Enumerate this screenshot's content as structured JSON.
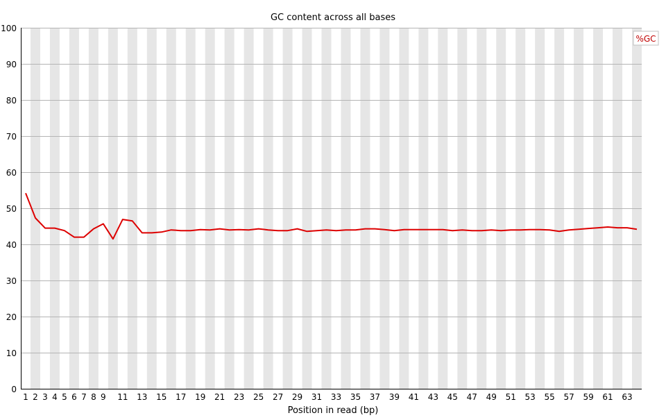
{
  "chart_data": {
    "type": "line",
    "title": "GC content across all bases",
    "xlabel": "Position in read (bp)",
    "ylabel": "",
    "ylim": [
      0,
      100
    ],
    "yticks": [
      0,
      10,
      20,
      30,
      40,
      50,
      60,
      70,
      80,
      90,
      100
    ],
    "x": [
      1,
      2,
      3,
      4,
      5,
      6,
      7,
      8,
      9,
      10,
      11,
      12,
      13,
      14,
      15,
      16,
      17,
      18,
      19,
      20,
      21,
      22,
      23,
      24,
      25,
      26,
      27,
      28,
      29,
      30,
      31,
      32,
      33,
      34,
      35,
      36,
      37,
      38,
      39,
      40,
      41,
      42,
      43,
      44,
      45,
      46,
      47,
      48,
      49,
      50,
      51,
      52,
      53,
      54,
      55,
      56,
      57,
      58,
      59,
      60,
      61,
      62,
      63,
      64
    ],
    "x_tick_labels": [
      "1",
      "2",
      "3",
      "4",
      "5",
      "6",
      "7",
      "8",
      "9",
      "11",
      "13",
      "15",
      "17",
      "19",
      "21",
      "23",
      "25",
      "27",
      "29",
      "31",
      "33",
      "35",
      "37",
      "39",
      "41",
      "43",
      "45",
      "47",
      "49",
      "51",
      "53",
      "55",
      "57",
      "59",
      "61",
      "63"
    ],
    "series": [
      {
        "name": "%GC",
        "color": "#dd0000",
        "values": [
          54.2,
          47.3,
          44.5,
          44.5,
          43.8,
          42.0,
          42.0,
          44.3,
          45.7,
          41.5,
          46.9,
          46.5,
          43.2,
          43.2,
          43.4,
          44.0,
          43.8,
          43.8,
          44.1,
          44.0,
          44.3,
          44.0,
          44.1,
          44.0,
          44.3,
          44.0,
          43.8,
          43.8,
          44.3,
          43.6,
          43.8,
          44.0,
          43.8,
          44.0,
          44.0,
          44.3,
          44.3,
          44.1,
          43.8,
          44.1,
          44.1,
          44.1,
          44.1,
          44.1,
          43.8,
          44.0,
          43.8,
          43.8,
          44.0,
          43.8,
          44.0,
          44.0,
          44.1,
          44.1,
          44.0,
          43.6,
          44.0,
          44.2,
          44.4,
          44.6,
          44.8,
          44.6,
          44.6,
          44.2
        ]
      }
    ],
    "grid": true,
    "legend_position": "top-right"
  }
}
